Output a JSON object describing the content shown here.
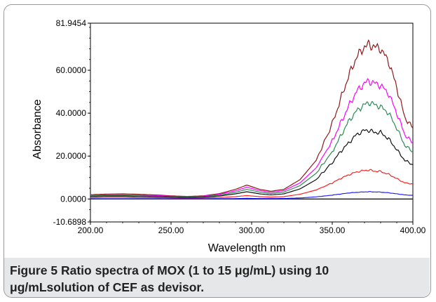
{
  "figure_label": "Figure 5",
  "caption_text": "Ratio spectra of MOX (1 to 15 μg/mL) using 10 μg/mLsolution of CEF as devisor.",
  "chart_data": {
    "type": "line",
    "xlabel": "Wavelength nm",
    "ylabel": "Absorbance",
    "xlim": [
      200,
      400
    ],
    "ylim": [
      -10.6898,
      81.9454
    ],
    "x_tick_labels": [
      "200.00",
      "250.00",
      "300.00",
      "350.00",
      "400.00"
    ],
    "x_ticks": [
      200,
      250,
      300,
      350,
      400
    ],
    "y_tick_labels": [
      "81.9454",
      "60.0000",
      "40.0000",
      "20.0000",
      "0.0000",
      "-10.6898"
    ],
    "y_ticks": [
      81.9454,
      60,
      40,
      20,
      0,
      -10.6898
    ],
    "x": [
      200,
      210,
      220,
      230,
      240,
      250,
      260,
      270,
      280,
      290,
      297,
      305,
      312,
      320,
      330,
      340,
      350,
      355,
      360,
      365,
      370,
      373,
      376,
      380,
      385,
      390,
      395,
      400
    ],
    "series": [
      {
        "color": "#8b1a1a",
        "values": [
          2,
          2.3,
          2.4,
          2.2,
          1.9,
          1.5,
          1.2,
          1.5,
          2.5,
          4.5,
          6.5,
          4.5,
          3.6,
          4.5,
          9,
          18,
          35,
          46,
          57,
          66,
          71,
          72,
          71,
          70,
          64,
          52,
          38,
          33
        ]
      },
      {
        "color": "#ff00ff",
        "values": [
          1.8,
          1.9,
          1.9,
          1.8,
          1.6,
          1.3,
          1.1,
          1.3,
          2.2,
          3.8,
          5.5,
          3.9,
          3.1,
          3.9,
          7.5,
          14.5,
          27,
          35,
          43,
          50,
          54,
          55,
          54,
          53,
          49,
          40,
          30,
          26
        ]
      },
      {
        "color": "#2e8b57",
        "values": [
          1.5,
          1.6,
          1.6,
          1.5,
          1.3,
          1.1,
          0.9,
          1.1,
          1.8,
          3.1,
          4.5,
          3.2,
          2.5,
          3.2,
          6.2,
          12,
          22,
          29,
          36,
          41,
          44,
          45,
          44,
          43,
          40,
          33,
          25,
          22
        ]
      },
      {
        "color": "#111111",
        "values": [
          1.2,
          1.3,
          1.3,
          1.2,
          1.1,
          0.9,
          0.7,
          0.9,
          1.4,
          2.4,
          3.4,
          2.4,
          1.9,
          2.4,
          4.7,
          9,
          17,
          22,
          26,
          30,
          32,
          32,
          31,
          31,
          28,
          23,
          18,
          16
        ]
      },
      {
        "color": "#ff2020",
        "values": [
          0.6,
          0.7,
          0.7,
          0.6,
          0.6,
          0.5,
          0.4,
          0.5,
          0.7,
          1.1,
          1.6,
          1.1,
          0.9,
          1.1,
          2.2,
          4.2,
          7.5,
          9.5,
          11.2,
          12.6,
          13.3,
          13.5,
          13,
          12.8,
          11.5,
          9.5,
          7.5,
          7
        ]
      },
      {
        "color": "#2020ff",
        "values": [
          0.1,
          0.1,
          0.1,
          0.1,
          0.1,
          0.1,
          0.1,
          0.1,
          0.15,
          0.2,
          0.3,
          0.2,
          0.2,
          0.25,
          0.5,
          1,
          1.8,
          2.3,
          2.8,
          3.1,
          3.3,
          3.4,
          3.3,
          3.2,
          2.9,
          2.4,
          1.9,
          1.7
        ]
      }
    ],
    "grid": false,
    "legend": "none"
  }
}
